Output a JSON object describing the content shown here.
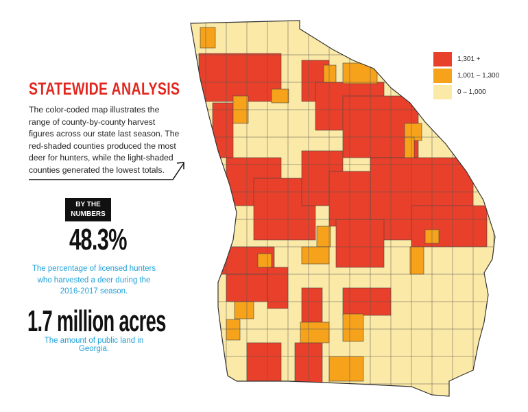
{
  "heading": "STATEWIDE ANALYSIS",
  "description": "The color-coded map illustrates the range of county-by-county harvest figures across our state last season. The red-shaded counties produced the most deer for hunters, while the light-shaded counties generated the lowest totals.",
  "badge": {
    "line1": "BY THE",
    "line2": "NUMBERS"
  },
  "stat1": {
    "value": "48.3%",
    "caption": "The percentage of licensed hunters who harvested a deer during the 2016-2017 season."
  },
  "stat2": {
    "value": "1.7 million acres",
    "caption": "The amount of public land in Georgia."
  },
  "legend": [
    {
      "label": "1,301 +",
      "color": "#e8402a"
    },
    {
      "label": "1,001 – 1,300",
      "color": "#f7a21b"
    },
    {
      "label": "0 – 1,000",
      "color": "#fbe9a7"
    }
  ]
}
